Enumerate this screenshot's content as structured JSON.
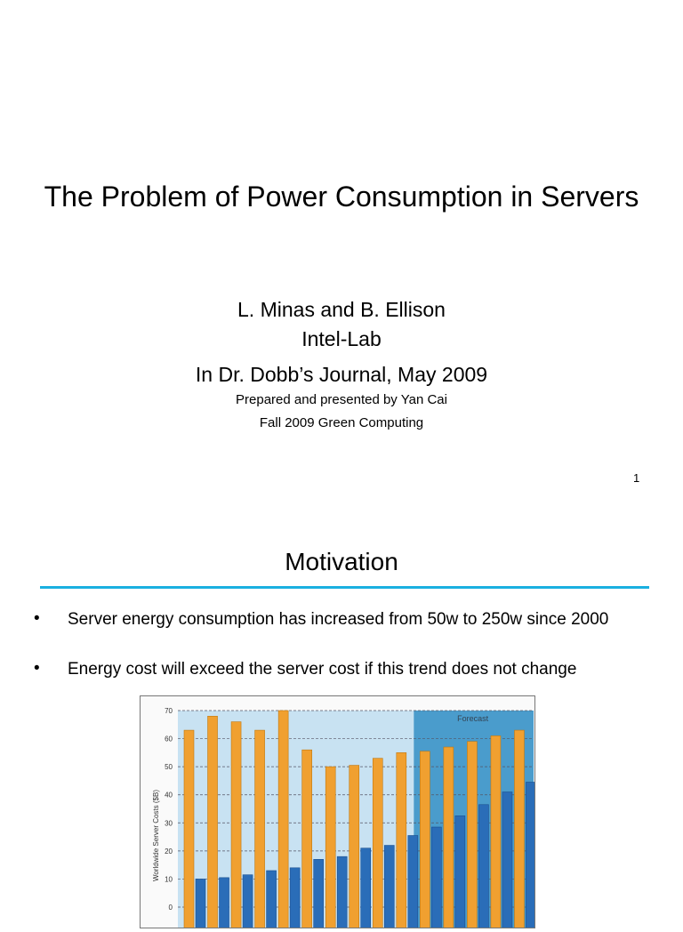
{
  "slide1": {
    "title": "The Problem of Power Consumption in Servers",
    "authors": "L. Minas and B. Ellison",
    "affiliation": "Intel-Lab",
    "journal": "In Dr. Dobb’s Journal, May 2009",
    "presenter": "Prepared and presented by Yan Cai",
    "course": "Fall 2009 Green Computing",
    "page_number": "1"
  },
  "slide2": {
    "title": "Motivation",
    "accent": "#1ab0e0",
    "bullets": [
      {
        "marker": "•",
        "text": "Server energy consumption has increased from 50w to 250w since 2000"
      },
      {
        "marker": "•",
        "text": "Energy cost will exceed the server cost if this trend does not change"
      }
    ]
  },
  "chart_data": {
    "type": "bar",
    "ylabel": "Worldwide Server Costs ($B)",
    "ylim": [
      0,
      70
    ],
    "yticks": [
      0,
      10,
      20,
      30,
      40,
      50,
      60,
      70
    ],
    "grid": true,
    "annotation": "Forecast",
    "forecast_from_index": 10,
    "series": [
      {
        "color": "#f0a030",
        "values": [
          63,
          68,
          66,
          63,
          70,
          56,
          50,
          50.5,
          53,
          55,
          55.5,
          57,
          59,
          61,
          63
        ]
      },
      {
        "color": "#2a6db8",
        "values": [
          10,
          10.5,
          11.5,
          13,
          14,
          17,
          18,
          21,
          22,
          25.5,
          28.5,
          32.5,
          36.5,
          41,
          44.5
        ]
      }
    ]
  }
}
